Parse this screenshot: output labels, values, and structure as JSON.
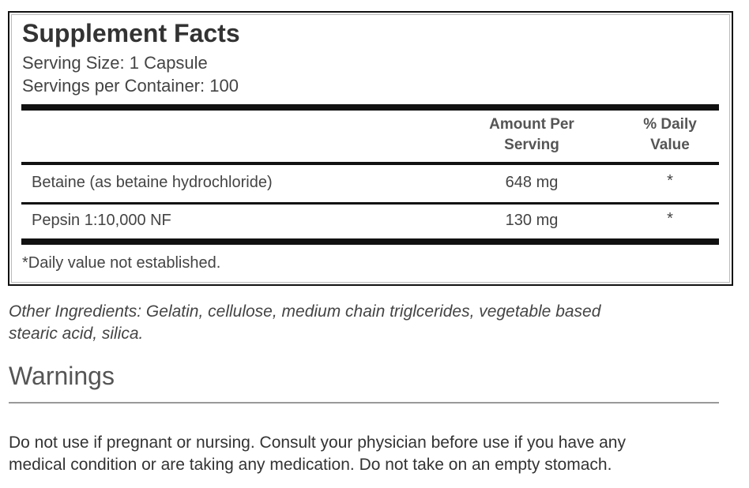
{
  "facts": {
    "title": "Supplement Facts",
    "serving_size": "Serving Size: 1 Capsule",
    "servings_per_container": "Servings per Container: 100",
    "columns": {
      "amount_line1": "Amount Per",
      "amount_line2": "Serving",
      "daily_line1": "% Daily",
      "daily_line2": "Value"
    },
    "rows": [
      {
        "name": "Betaine (as betaine hydrochloride)",
        "amount": "648 mg",
        "daily": "*"
      },
      {
        "name": "Pepsin 1:10,000 NF",
        "amount": "130 mg",
        "daily": "*"
      }
    ],
    "footnote": "*Daily value not established."
  },
  "other_ingredients": {
    "line1": "Other Ingredients: Gelatin, cellulose, medium chain triglcerides, vegetable based",
    "line2": "stearic acid, silica."
  },
  "warnings": {
    "title": "Warnings",
    "line1": "Do not use if pregnant or nursing. Consult your physician before use if you have any",
    "line2": "medical condition or are taking any medication. Do not take on an empty stomach."
  }
}
